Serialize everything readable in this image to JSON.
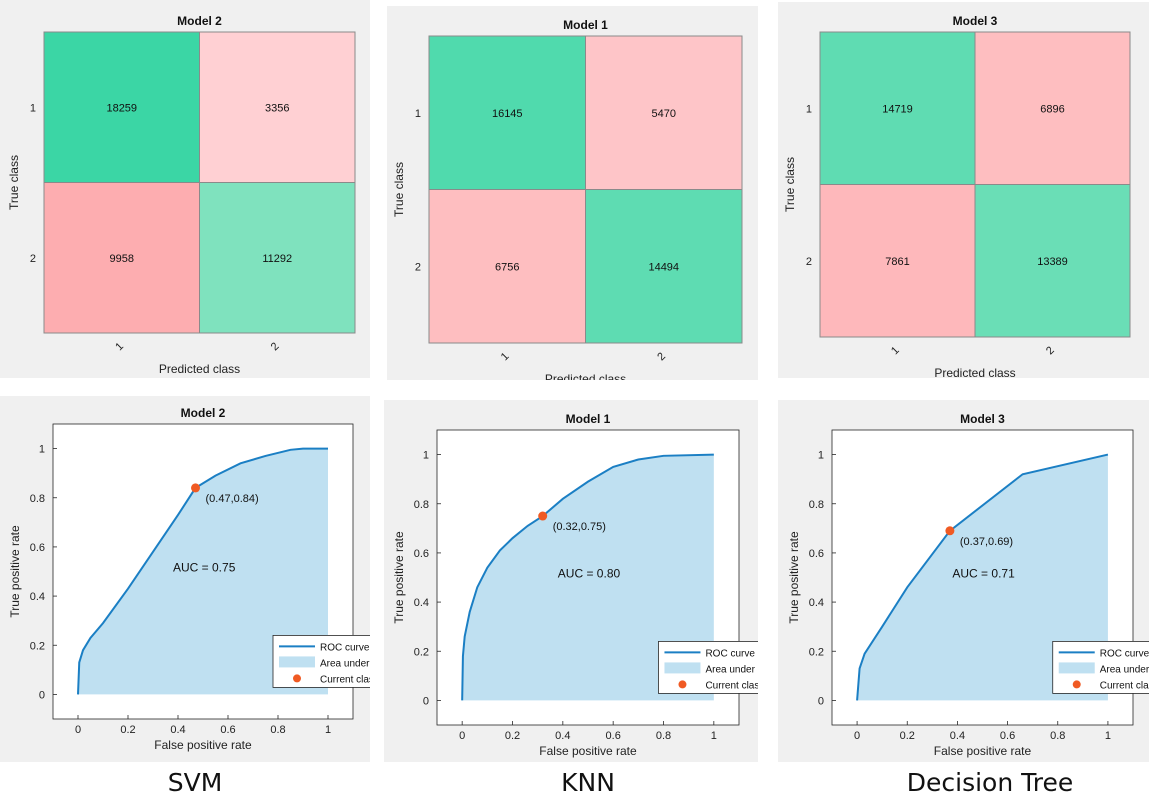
{
  "confusion": [
    {
      "title": "Model 2",
      "rows": [
        "1",
        "2"
      ],
      "cols": [
        "1",
        "2"
      ],
      "xlabel": "Predicted class",
      "ylabel": "True class",
      "values": [
        [
          18259,
          3356
        ],
        [
          9958,
          11292
        ]
      ]
    },
    {
      "title": "Model 1",
      "rows": [
        "1",
        "2"
      ],
      "cols": [
        "1",
        "2"
      ],
      "xlabel": "Predicted class",
      "ylabel": "True class",
      "values": [
        [
          16145,
          5470
        ],
        [
          6756,
          14494
        ]
      ]
    },
    {
      "title": "Model 3",
      "rows": [
        "1",
        "2"
      ],
      "cols": [
        "1",
        "2"
      ],
      "xlabel": "Predicted class",
      "ylabel": "True class",
      "values": [
        [
          14719,
          6896
        ],
        [
          7861,
          13389
        ]
      ]
    }
  ],
  "roc_legend": {
    "curve": "ROC curve",
    "area": "Area under curve (AUC)",
    "classifier": "Current classifier"
  },
  "colors": {
    "roc_line": "#1b7fc4",
    "roc_fill": "#bfe0f1",
    "classifier": "#f05a23"
  },
  "chart_data": [
    {
      "type": "area",
      "title": "Model 2",
      "xlabel": "False positive rate",
      "ylabel": "True positive rate",
      "xlim": [
        -0.1,
        1.1
      ],
      "ylim": [
        -0.1,
        1.1
      ],
      "xticks": [
        0,
        0.2,
        0.4,
        0.6,
        0.8,
        1
      ],
      "xticklabels": [
        "0",
        "0.2",
        "0.4",
        "0.6",
        "0.8",
        "1"
      ],
      "yticks": [
        0,
        0.2,
        0.4,
        0.6,
        0.8,
        1
      ],
      "yticklabels": [
        "0",
        "0.2",
        "0.4",
        "0.6",
        "0.8",
        "1"
      ],
      "x": [
        0,
        0.005,
        0.02,
        0.05,
        0.1,
        0.2,
        0.3,
        0.4,
        0.47,
        0.55,
        0.65,
        0.75,
        0.85,
        0.9,
        1.0
      ],
      "y": [
        0,
        0.13,
        0.18,
        0.23,
        0.29,
        0.43,
        0.58,
        0.73,
        0.84,
        0.89,
        0.94,
        0.97,
        0.995,
        1.0,
        1.0
      ],
      "point": {
        "x": 0.47,
        "y": 0.84,
        "label": "(0.47,0.84)"
      },
      "auc_label": "AUC = 0.75"
    },
    {
      "type": "area",
      "title": "Model 1",
      "xlabel": "False positive rate",
      "ylabel": "True positive rate",
      "xlim": [
        -0.1,
        1.1
      ],
      "ylim": [
        -0.1,
        1.1
      ],
      "xticks": [
        0,
        0.2,
        0.4,
        0.6,
        0.8,
        1
      ],
      "xticklabels": [
        "0",
        "0.2",
        "0.4",
        "0.6",
        "0.8",
        "1"
      ],
      "yticks": [
        0,
        0.2,
        0.4,
        0.6,
        0.8,
        1
      ],
      "yticklabels": [
        "0",
        "0.2",
        "0.4",
        "0.6",
        "0.8",
        "1"
      ],
      "x": [
        0,
        0.003,
        0.01,
        0.03,
        0.06,
        0.1,
        0.15,
        0.2,
        0.26,
        0.32,
        0.4,
        0.5,
        0.6,
        0.7,
        0.8,
        1.0
      ],
      "y": [
        0,
        0.18,
        0.26,
        0.36,
        0.46,
        0.54,
        0.61,
        0.66,
        0.71,
        0.75,
        0.82,
        0.89,
        0.95,
        0.98,
        0.995,
        1.0
      ],
      "point": {
        "x": 0.32,
        "y": 0.75,
        "label": "(0.32,0.75)"
      },
      "auc_label": "AUC = 0.80"
    },
    {
      "type": "area",
      "title": "Model 3",
      "xlabel": "False positive rate",
      "ylabel": "True positive rate",
      "xlim": [
        -0.1,
        1.1
      ],
      "ylim": [
        -0.1,
        1.1
      ],
      "xticks": [
        0,
        0.2,
        0.4,
        0.6,
        0.8,
        1
      ],
      "xticklabels": [
        "0",
        "0.2",
        "0.4",
        "0.6",
        "0.8",
        "1"
      ],
      "yticks": [
        0,
        0.2,
        0.4,
        0.6,
        0.8,
        1
      ],
      "yticklabels": [
        "0",
        "0.2",
        "0.4",
        "0.6",
        "0.8",
        "1"
      ],
      "x": [
        0,
        0.01,
        0.03,
        0.1,
        0.2,
        0.37,
        0.66,
        1.0
      ],
      "y": [
        0,
        0.13,
        0.19,
        0.3,
        0.46,
        0.69,
        0.92,
        1.0
      ],
      "point": {
        "x": 0.37,
        "y": 0.69,
        "label": "(0.37,0.69)"
      },
      "auc_label": "AUC = 0.71"
    }
  ],
  "captions": [
    "SVM",
    "KNN",
    "Decision Tree"
  ]
}
